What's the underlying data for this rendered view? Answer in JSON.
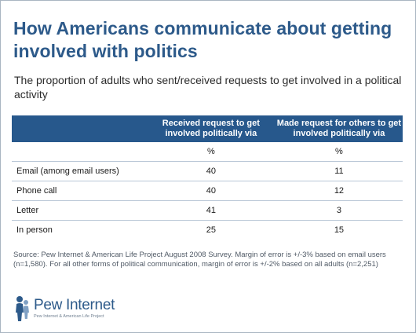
{
  "chart_data": {
    "type": "table",
    "title": "How Americans communicate about getting involved with politics",
    "subtitle": "The proportion of adults who sent/received requests to get involved in a political activity",
    "columns": [
      "Received request to get involved politically via",
      "Made request for others to get involved politically via"
    ],
    "unit_row": [
      "%",
      "%"
    ],
    "rows": [
      {
        "label": "Email (among email users)",
        "values": [
          "40",
          "11"
        ]
      },
      {
        "label": "Phone call",
        "values": [
          "40",
          "12"
        ]
      },
      {
        "label": "Letter",
        "values": [
          "41",
          "3"
        ]
      },
      {
        "label": "In person",
        "values": [
          "25",
          "15"
        ]
      }
    ]
  },
  "source": "Source:  Pew Internet & American Life Project August 2008 Survey. Margin of error is +/-3% based on email users (n=1,580). For all other forms of political communication, margin of error is +/-2% based on all adults (n=2,251)",
  "logo": {
    "name": "Pew Internet",
    "tagline": "Pew Internet & American Life Project",
    "icon": "pew-figure-icon",
    "color": "#2d5a8a"
  },
  "colors": {
    "title": "#2d5a8a",
    "header_bg": "#27588c",
    "row_divider": "#b9c7d6"
  }
}
